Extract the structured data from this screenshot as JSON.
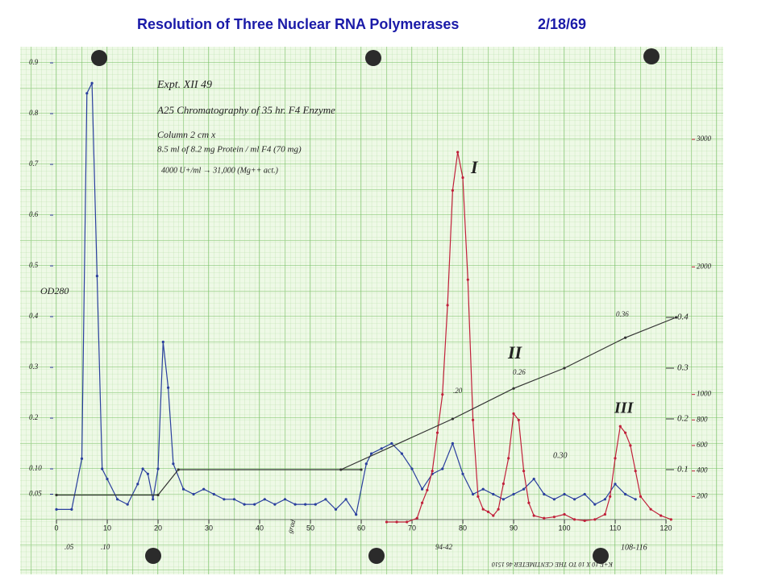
{
  "chart_data": {
    "type": "line",
    "title": "Resolution of Three Nuclear RNA Polymerases",
    "subtitle": "2/18/69",
    "y_label": "OD280",
    "xlim": [
      0,
      120
    ],
    "xticks": [
      0,
      10,
      20,
      30,
      40,
      50,
      60,
      70,
      80,
      90,
      100,
      110,
      120
    ],
    "ylim": [
      0,
      0.9
    ],
    "yticks": [
      {
        "value": 0.05,
        "label": "0.05"
      },
      {
        "value": 0.1,
        "label": "0.10"
      },
      0.2,
      0.3,
      0.4,
      0.5,
      0.6,
      0.7,
      0.8,
      0.9
    ],
    "y2lim": [
      0,
      3000
    ],
    "y2ticks": [
      200,
      400,
      600,
      800,
      1000,
      2000,
      3000
    ],
    "y3lim": [
      0,
      0.9
    ],
    "y3ticks": [
      0.1,
      0.2,
      0.3,
      0.4
    ],
    "grid": true,
    "series": [
      {
        "color": "#2a3f9e",
        "axis": "y",
        "x": [
          0,
          3,
          5,
          6,
          7,
          8,
          9,
          10,
          12,
          14,
          16,
          17,
          18,
          19,
          20,
          21,
          22,
          23,
          25,
          27,
          29,
          31,
          33,
          35,
          37,
          39,
          41,
          43,
          45,
          47,
          49,
          51,
          53,
          55,
          57,
          59,
          61,
          62,
          64,
          66,
          68,
          70,
          72,
          74,
          76,
          78,
          80,
          82,
          84,
          86,
          88,
          90,
          92,
          94,
          96,
          98,
          100,
          102,
          104,
          106,
          108,
          110,
          112,
          114
        ],
        "values": [
          0.02,
          0.02,
          0.12,
          0.84,
          0.86,
          0.48,
          0.1,
          0.08,
          0.04,
          0.03,
          0.07,
          0.1,
          0.09,
          0.04,
          0.1,
          0.35,
          0.26,
          0.11,
          0.06,
          0.05,
          0.06,
          0.05,
          0.04,
          0.04,
          0.03,
          0.03,
          0.04,
          0.03,
          0.04,
          0.03,
          0.03,
          0.03,
          0.04,
          0.02,
          0.04,
          0.01,
          0.11,
          0.13,
          0.14,
          0.15,
          0.13,
          0.1,
          0.06,
          0.09,
          0.1,
          0.15,
          0.09,
          0.05,
          0.06,
          0.05,
          0.04,
          0.05,
          0.06,
          0.08,
          0.05,
          0.04,
          0.05,
          0.04,
          0.05,
          0.03,
          0.04,
          0.07,
          0.05,
          0.04
        ]
      },
      {
        "color": "#c0203a",
        "axis": "y2",
        "x": [
          65,
          67,
          69,
          71,
          72,
          73,
          74,
          75,
          76,
          77,
          78,
          79,
          80,
          81,
          82,
          83,
          84,
          85,
          86,
          87,
          88,
          89,
          90,
          91,
          92,
          93,
          94,
          96,
          98,
          100,
          102,
          104,
          106,
          108,
          109,
          110,
          111,
          112,
          113,
          114,
          115,
          117,
          119,
          121
        ],
        "values": [
          0,
          0,
          0,
          30,
          150,
          250,
          400,
          700,
          1000,
          1700,
          2600,
          2900,
          2700,
          1900,
          800,
          200,
          100,
          80,
          50,
          100,
          300,
          500,
          850,
          800,
          400,
          150,
          50,
          30,
          40,
          60,
          20,
          10,
          20,
          60,
          200,
          500,
          750,
          700,
          600,
          400,
          200,
          100,
          50,
          20
        ]
      },
      {
        "color": "#333333",
        "axis": "y3",
        "x": [
          0,
          20,
          24,
          60
        ],
        "values": [
          0.05,
          0.05,
          0.1,
          0.1
        ]
      },
      {
        "color": "#333333",
        "axis": "y3",
        "x": [
          56,
          78,
          90,
          100,
          112,
          122
        ],
        "values": [
          0.1,
          0.2,
          0.26,
          0.3,
          0.36,
          0.4
        ]
      }
    ],
    "annotations": [
      "Expt. XII 49",
      "A25 Chromatography of 35 hr. F4 Enzyme",
      "Column 2 cm x",
      "8.5 ml of 8.2 mg Protein / ml F4 (70 mg)",
      "4000 U+/ml → 31,000 (Mg++ act.)",
      "I",
      "II",
      "III",
      "0.36",
      "0.26",
      ".20",
      "0.30",
      "94-42",
      "108-116",
      "grad",
      ".05",
      ".10",
      "K+E 10 X 10 TO THE CENTIMETER 46 1510"
    ]
  }
}
